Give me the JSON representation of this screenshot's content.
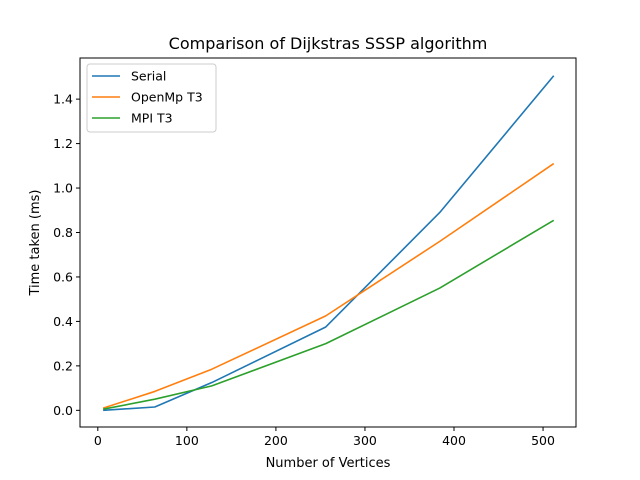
{
  "chart_data": {
    "type": "line",
    "title": "Comparison of Dijkstras SSSP algorithm",
    "xlabel": "Number of Vertices",
    "ylabel": "Time taken (ms)",
    "xlim": [
      -20,
      537
    ],
    "ylim": [
      -0.075,
      1.585
    ],
    "x_ticks": [
      0,
      100,
      200,
      300,
      400,
      500
    ],
    "y_ticks": [
      0.0,
      0.2,
      0.4,
      0.6,
      0.8,
      1.0,
      1.2,
      1.4
    ],
    "y_tick_labels": [
      "0.0",
      "0.2",
      "0.4",
      "0.6",
      "0.8",
      "1.0",
      "1.2",
      "1.4"
    ],
    "grid": false,
    "legend_position": "top-left",
    "series": [
      {
        "name": "Serial",
        "color": "#1f77b4",
        "x": [
          6,
          64,
          128,
          256,
          384,
          512
        ],
        "values": [
          0.0,
          0.015,
          0.125,
          0.375,
          0.89,
          1.505
        ]
      },
      {
        "name": "OpenMp T3",
        "color": "#ff7f0e",
        "x": [
          6,
          64,
          128,
          256,
          384,
          512
        ],
        "values": [
          0.01,
          0.085,
          0.185,
          0.425,
          0.76,
          1.11
        ]
      },
      {
        "name": "MPI T3",
        "color": "#2ca02c",
        "x": [
          6,
          64,
          128,
          256,
          384,
          512
        ],
        "values": [
          0.005,
          0.05,
          0.11,
          0.3,
          0.55,
          0.855
        ]
      }
    ]
  }
}
